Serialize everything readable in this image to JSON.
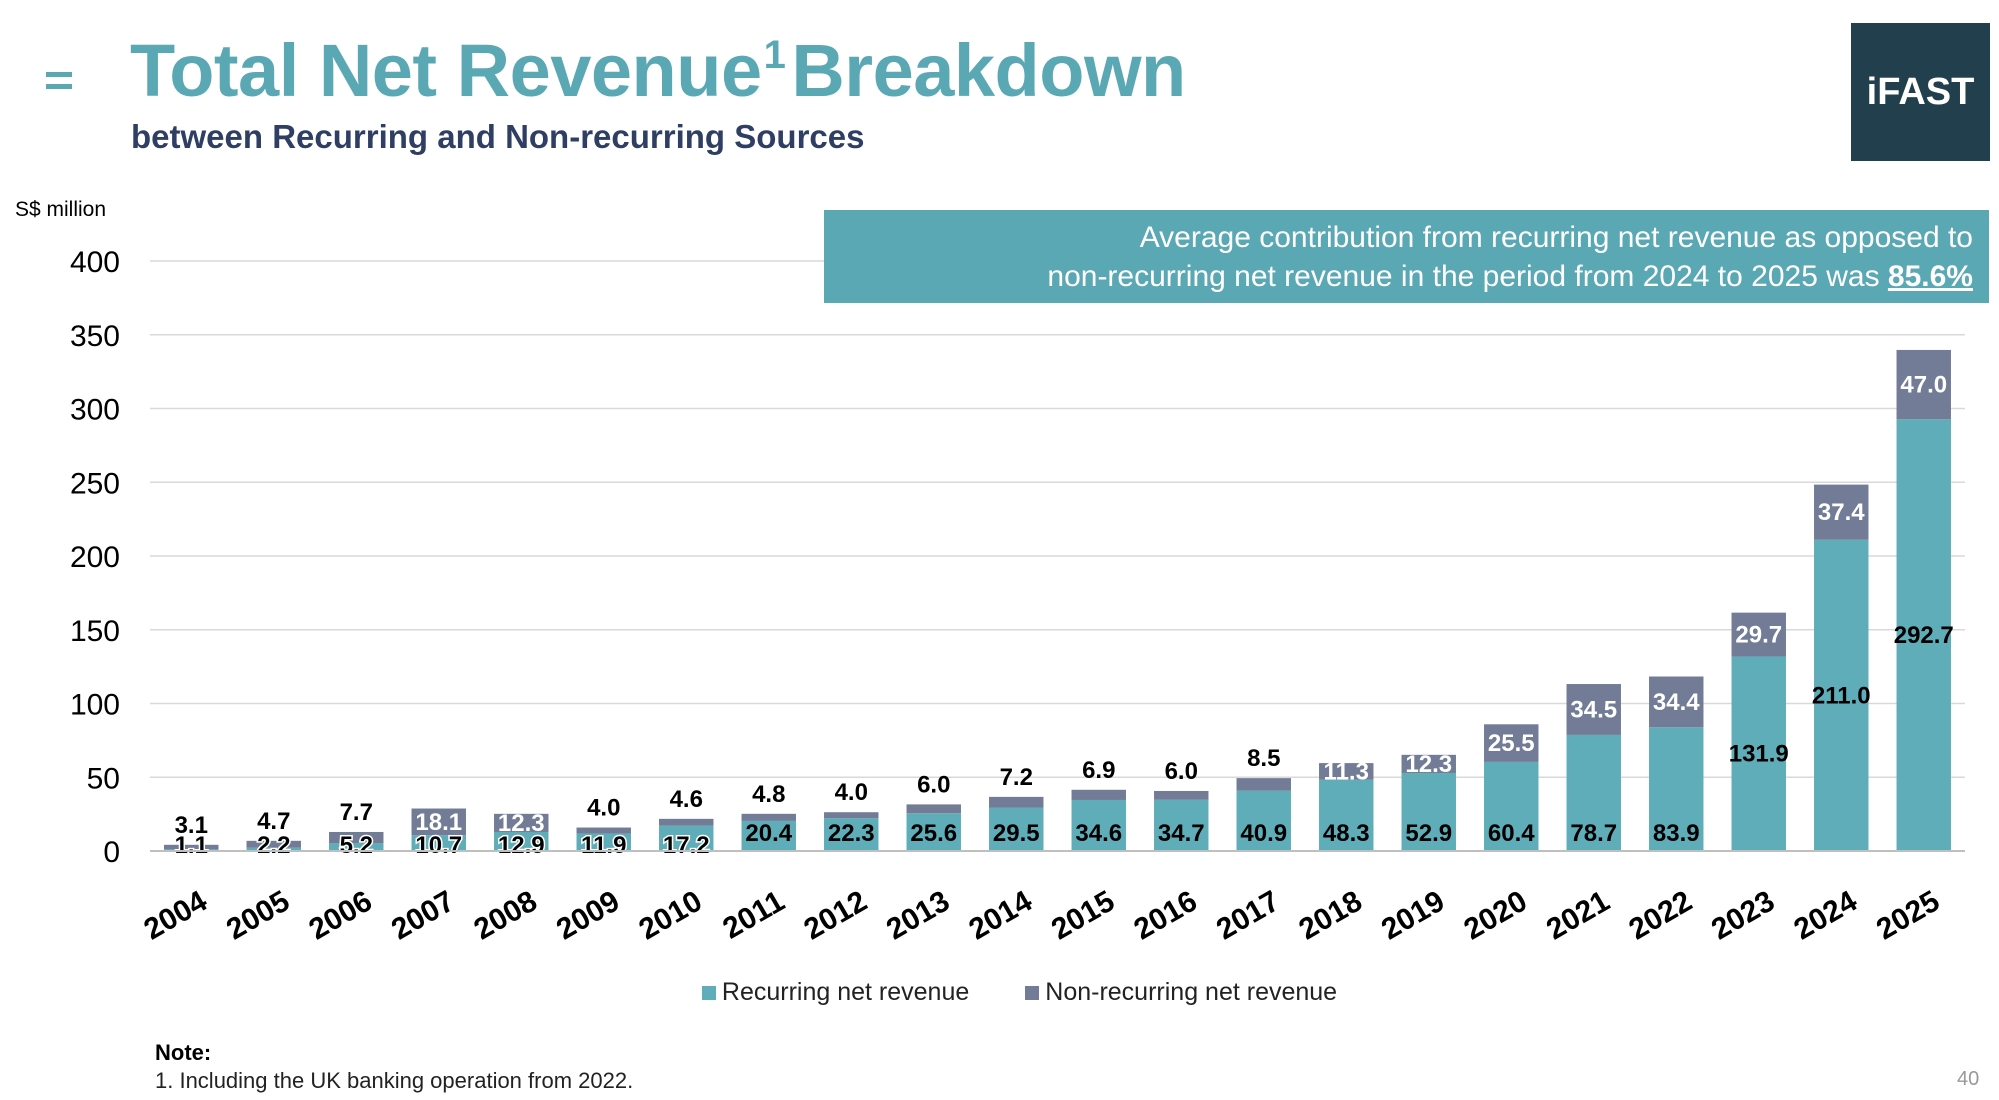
{
  "header": {
    "title": "Total Net Revenue",
    "title_superscript": "1",
    "title_suffix": "Breakdown",
    "subtitle": "between Recurring and Non-recurring Sources",
    "logo_text": "iFAST"
  },
  "callout": {
    "line1": "Average contribution from recurring net revenue as opposed to",
    "line2": "non-recurring net revenue in the period from 2024 to 2025 was",
    "highlight": "85.6%"
  },
  "note": {
    "title": "Note:",
    "text": "1. Including the UK banking operation from 2022."
  },
  "page_number": "40",
  "colors": {
    "accent": "#5ba8b5",
    "recurring": "#5fadb9",
    "non_recurring": "#727c96",
    "title_dark": "#2f3e63",
    "logo_bg": "#213f4d",
    "grid": "#d9d9d9"
  },
  "chart_data": {
    "type": "bar",
    "stacked": true,
    "ylabel": "S$ million",
    "ylim": [
      0,
      400
    ],
    "yticks": [
      0,
      50,
      100,
      150,
      200,
      250,
      300,
      350,
      400
    ],
    "grid": true,
    "legend_position": "bottom",
    "categories": [
      "2004",
      "2005",
      "2006",
      "2007",
      "2008",
      "2009",
      "2010",
      "2011",
      "2012",
      "2013",
      "2014",
      "2015",
      "2016",
      "2017",
      "2018",
      "2019",
      "2020",
      "2021",
      "2022",
      "2023",
      "2024",
      "2025"
    ],
    "series": [
      {
        "name": "Recurring net revenue",
        "values": [
          1.1,
          2.2,
          5.2,
          10.7,
          12.9,
          11.9,
          17.2,
          20.4,
          22.3,
          25.6,
          29.5,
          34.6,
          34.7,
          40.9,
          48.3,
          52.9,
          60.4,
          78.7,
          83.9,
          131.9,
          211.0,
          292.7
        ],
        "labels": [
          "1.1",
          "2.2",
          "5.2",
          "10.7",
          "12.9",
          "11.9",
          "17.2",
          "20.4",
          "22.3",
          "25.6",
          "29.5",
          "34.6",
          "34.7",
          "40.9",
          "48.3",
          "52.9",
          "60.4",
          "78.7",
          "83.9",
          "131.9",
          "211.0",
          "292.7"
        ]
      },
      {
        "name": "Non-recurring net revenue",
        "values": [
          3.1,
          4.7,
          7.7,
          18.1,
          12.3,
          4.0,
          4.6,
          4.8,
          4.0,
          6.0,
          7.2,
          6.9,
          6.0,
          8.5,
          11.3,
          12.3,
          25.5,
          34.5,
          34.4,
          29.7,
          37.4,
          47.0
        ],
        "labels": [
          "3.1",
          "4.7",
          "7.7",
          "18.1",
          "12.3",
          "4.0",
          "4.6",
          "4.8",
          "4.0",
          "6.0",
          "7.2",
          "6.9",
          "6.0",
          "8.5",
          "11.3",
          "12.3",
          "25.5",
          "34.5",
          "34.4",
          "29.7",
          "37.4",
          "47.0"
        ]
      }
    ]
  }
}
